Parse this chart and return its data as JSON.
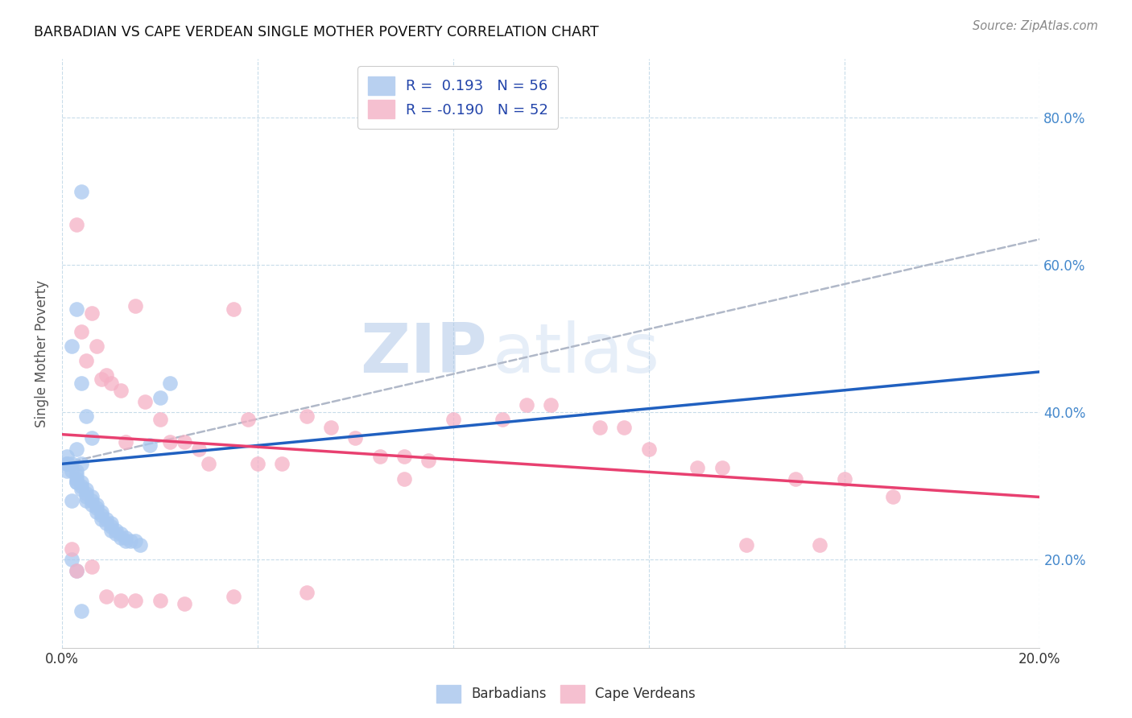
{
  "title": "BARBADIAN VS CAPE VERDEAN SINGLE MOTHER POVERTY CORRELATION CHART",
  "source": "Source: ZipAtlas.com",
  "ylabel": "Single Mother Poverty",
  "y_ticks": [
    0.2,
    0.4,
    0.6,
    0.8
  ],
  "y_tick_labels": [
    "20.0%",
    "40.0%",
    "60.0%",
    "80.0%"
  ],
  "x_range": [
    0.0,
    0.2
  ],
  "y_range": [
    0.08,
    0.88
  ],
  "barbadian_color": "#a8c8f0",
  "cape_verdean_color": "#f5b0c5",
  "trend_barbadian_color": "#2060c0",
  "trend_cape_verdean_color": "#e84070",
  "trend_dashed_color": "#b0b8c8",
  "watermark_zip": "ZIP",
  "watermark_atlas": "atlas",
  "barb_trend_x0": 0.0,
  "barb_trend_y0": 0.33,
  "barb_trend_x1": 0.2,
  "barb_trend_y1": 0.455,
  "cape_trend_x0": 0.0,
  "cape_trend_y0": 0.37,
  "cape_trend_x1": 0.2,
  "cape_trend_y1": 0.285,
  "dash_trend_x0": 0.0,
  "dash_trend_y0": 0.33,
  "dash_trend_x1": 0.2,
  "dash_trend_y1": 0.635,
  "barbadians_x": [
    0.004,
    0.003,
    0.002,
    0.001,
    0.001,
    0.002,
    0.001,
    0.002,
    0.003,
    0.003,
    0.003,
    0.003,
    0.004,
    0.004,
    0.004,
    0.005,
    0.005,
    0.005,
    0.005,
    0.006,
    0.006,
    0.006,
    0.007,
    0.007,
    0.007,
    0.008,
    0.008,
    0.008,
    0.009,
    0.009,
    0.01,
    0.01,
    0.01,
    0.011,
    0.011,
    0.012,
    0.012,
    0.013,
    0.013,
    0.014,
    0.015,
    0.016,
    0.018,
    0.02,
    0.022,
    0.003,
    0.004,
    0.005,
    0.006,
    0.002,
    0.003,
    0.004,
    0.001,
    0.002,
    0.003,
    0.004
  ],
  "barbadians_y": [
    0.7,
    0.54,
    0.49,
    0.34,
    0.33,
    0.33,
    0.32,
    0.32,
    0.32,
    0.315,
    0.31,
    0.305,
    0.305,
    0.3,
    0.295,
    0.295,
    0.29,
    0.285,
    0.28,
    0.285,
    0.28,
    0.275,
    0.275,
    0.27,
    0.265,
    0.265,
    0.26,
    0.255,
    0.255,
    0.25,
    0.25,
    0.245,
    0.24,
    0.24,
    0.235,
    0.235,
    0.23,
    0.23,
    0.225,
    0.225,
    0.225,
    0.22,
    0.355,
    0.42,
    0.44,
    0.35,
    0.44,
    0.395,
    0.365,
    0.2,
    0.185,
    0.13,
    0.33,
    0.28,
    0.305,
    0.33
  ],
  "cape_verdeans_x": [
    0.002,
    0.003,
    0.004,
    0.005,
    0.006,
    0.007,
    0.008,
    0.009,
    0.01,
    0.012,
    0.013,
    0.015,
    0.017,
    0.02,
    0.022,
    0.025,
    0.028,
    0.03,
    0.035,
    0.038,
    0.04,
    0.045,
    0.05,
    0.055,
    0.06,
    0.065,
    0.07,
    0.075,
    0.08,
    0.09,
    0.095,
    0.1,
    0.11,
    0.115,
    0.12,
    0.13,
    0.135,
    0.14,
    0.15,
    0.155,
    0.16,
    0.17,
    0.003,
    0.006,
    0.009,
    0.012,
    0.015,
    0.02,
    0.025,
    0.035,
    0.05,
    0.07
  ],
  "cape_verdeans_y": [
    0.215,
    0.655,
    0.51,
    0.47,
    0.535,
    0.49,
    0.445,
    0.45,
    0.44,
    0.43,
    0.36,
    0.545,
    0.415,
    0.39,
    0.36,
    0.36,
    0.35,
    0.33,
    0.54,
    0.39,
    0.33,
    0.33,
    0.395,
    0.38,
    0.365,
    0.34,
    0.34,
    0.335,
    0.39,
    0.39,
    0.41,
    0.41,
    0.38,
    0.38,
    0.35,
    0.325,
    0.325,
    0.22,
    0.31,
    0.22,
    0.31,
    0.285,
    0.185,
    0.19,
    0.15,
    0.145,
    0.145,
    0.145,
    0.14,
    0.15,
    0.155,
    0.31
  ]
}
